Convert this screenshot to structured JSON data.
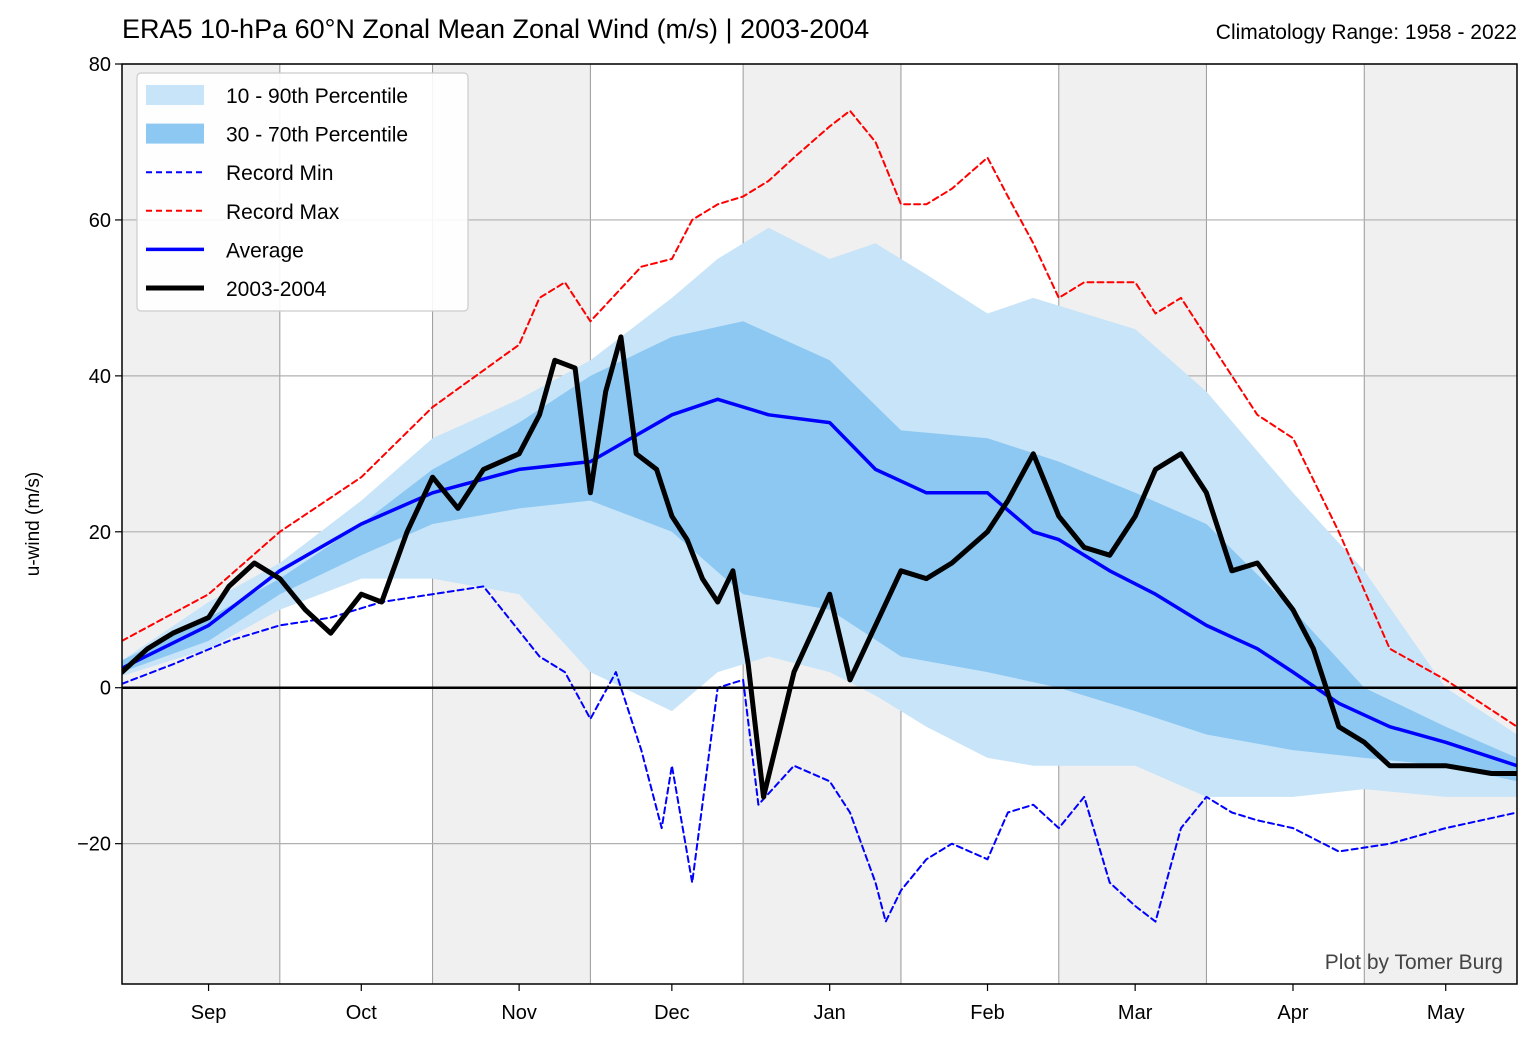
{
  "title": "ERA5 10-hPa 60°N Zonal Mean Zonal Wind (m/s) | 2003-2004",
  "subtitle": "Climatology Range: 1958 - 2022",
  "credit": "Plot by Tomer Burg",
  "chart_data": {
    "type": "line",
    "ylabel": "u-wind (m/s)",
    "xlabel": "",
    "x_domain": [
      "2003-08-15",
      "2004-05-15"
    ],
    "ylim": [
      -38,
      80
    ],
    "yticks": [
      -20,
      0,
      20,
      40,
      60,
      80
    ],
    "ytick_labels": [
      "−20",
      "0",
      "20",
      "40",
      "60",
      "80"
    ],
    "month_ticks": [
      {
        "label": "Sep",
        "date": "2003-09-01"
      },
      {
        "label": "Oct",
        "date": "2003-10-01"
      },
      {
        "label": "Nov",
        "date": "2003-11-01"
      },
      {
        "label": "Dec",
        "date": "2003-12-01"
      },
      {
        "label": "Jan",
        "date": "2004-01-01"
      },
      {
        "label": "Feb",
        "date": "2004-02-01"
      },
      {
        "label": "Mar",
        "date": "2004-03-01"
      },
      {
        "label": "Apr",
        "date": "2004-04-01"
      },
      {
        "label": "May",
        "date": "2004-05-01"
      }
    ],
    "month_boundaries": [
      "2003-09-15",
      "2003-10-15",
      "2003-11-15",
      "2003-12-15",
      "2004-01-15",
      "2004-02-15",
      "2004-03-15",
      "2004-04-15"
    ],
    "grid": true,
    "legend_position": "top-left",
    "legend": [
      "10 - 90th Percentile",
      "30 - 70th Percentile",
      "Record Min",
      "Record Max",
      "Average",
      "2003-2004"
    ],
    "colors": {
      "p10_90": "#c8e4f8",
      "p30_70": "#8cc8f2",
      "record_min": "#0000ff",
      "record_max": "#ff0000",
      "average": "#0000ff",
      "year": "#000000",
      "shade": "#f0f0f0"
    },
    "series": [
      {
        "name": "10 - 90th Percentile",
        "type": "band",
        "x": [
          "2003-08-15",
          "2003-09-01",
          "2003-09-15",
          "2003-10-01",
          "2003-10-15",
          "2003-11-01",
          "2003-11-15",
          "2003-12-01",
          "2003-12-10",
          "2003-12-20",
          "2004-01-01",
          "2004-01-10",
          "2004-01-20",
          "2004-02-01",
          "2004-02-10",
          "2004-02-20",
          "2004-03-01",
          "2004-03-15",
          "2004-04-01",
          "2004-04-15",
          "2004-05-01",
          "2004-05-15"
        ],
        "lower": [
          1.5,
          5,
          10,
          14,
          14,
          12,
          2,
          -3,
          2,
          4,
          2,
          -1,
          -5,
          -9,
          -10,
          -10,
          -10,
          -14,
          -14,
          -13,
          -14,
          -14
        ],
        "upper": [
          3.5,
          11,
          16,
          24,
          32,
          37,
          42,
          50,
          55,
          59,
          55,
          57,
          53,
          48,
          50,
          48,
          46,
          38,
          25,
          15,
          0,
          -6
        ]
      },
      {
        "name": "30 - 70th Percentile",
        "type": "band",
        "x": [
          "2003-08-15",
          "2003-09-01",
          "2003-09-15",
          "2003-10-01",
          "2003-10-15",
          "2003-11-01",
          "2003-11-15",
          "2003-12-01",
          "2003-12-15",
          "2004-01-01",
          "2004-01-15",
          "2004-02-01",
          "2004-02-15",
          "2004-03-01",
          "2004-03-15",
          "2004-04-01",
          "2004-04-15",
          "2004-05-01",
          "2004-05-15"
        ],
        "lower": [
          2,
          6,
          12,
          17,
          21,
          23,
          24,
          20,
          12,
          10,
          4,
          2,
          0,
          -3,
          -6,
          -8,
          -9,
          -10,
          -12
        ],
        "upper": [
          3.5,
          9,
          14,
          21,
          28,
          34,
          40,
          45,
          47,
          42,
          33,
          32,
          29,
          25,
          21,
          10,
          0,
          -5,
          -9
        ]
      },
      {
        "name": "Record Min",
        "type": "line",
        "x": [
          "2003-08-15",
          "2003-08-25",
          "2003-09-05",
          "2003-09-15",
          "2003-09-25",
          "2003-10-05",
          "2003-10-15",
          "2003-10-25",
          "2003-11-05",
          "2003-11-10",
          "2003-11-15",
          "2003-11-20",
          "2003-11-25",
          "2003-11-29",
          "2003-12-01",
          "2003-12-05",
          "2003-12-10",
          "2003-12-15",
          "2003-12-18",
          "2003-12-25",
          "2004-01-01",
          "2004-01-05",
          "2004-01-10",
          "2004-01-12",
          "2004-01-15",
          "2004-01-20",
          "2004-01-25",
          "2004-02-01",
          "2004-02-05",
          "2004-02-10",
          "2004-02-15",
          "2004-02-20",
          "2004-02-25",
          "2004-03-01",
          "2004-03-05",
          "2004-03-10",
          "2004-03-15",
          "2004-03-20",
          "2004-03-25",
          "2004-04-01",
          "2004-04-10",
          "2004-04-20",
          "2004-05-01",
          "2004-05-15"
        ],
        "values": [
          0.5,
          3,
          6,
          8,
          9,
          11,
          12,
          13,
          4,
          2,
          -4,
          2,
          -8,
          -18,
          -10,
          -25,
          0,
          1,
          -15,
          -10,
          -12,
          -16,
          -25,
          -30,
          -26,
          -22,
          -20,
          -22,
          -16,
          -15,
          -18,
          -14,
          -25,
          -28,
          -30,
          -18,
          -14,
          -16,
          -17,
          -18,
          -21,
          -20,
          -18,
          -16
        ]
      },
      {
        "name": "Record Max",
        "type": "line",
        "x": [
          "2003-08-15",
          "2003-09-01",
          "2003-09-15",
          "2003-10-01",
          "2003-10-15",
          "2003-11-01",
          "2003-11-05",
          "2003-11-10",
          "2003-11-15",
          "2003-11-25",
          "2003-12-01",
          "2003-12-05",
          "2003-12-10",
          "2003-12-15",
          "2003-12-20",
          "2003-12-25",
          "2004-01-01",
          "2004-01-05",
          "2004-01-10",
          "2004-01-15",
          "2004-01-20",
          "2004-01-25",
          "2004-02-01",
          "2004-02-05",
          "2004-02-10",
          "2004-02-15",
          "2004-02-20",
          "2004-02-25",
          "2004-03-01",
          "2004-03-05",
          "2004-03-10",
          "2004-03-15",
          "2004-03-20",
          "2004-03-25",
          "2004-04-01",
          "2004-04-10",
          "2004-04-20",
          "2004-05-01",
          "2004-05-15"
        ],
        "values": [
          6,
          12,
          20,
          27,
          36,
          44,
          50,
          52,
          47,
          54,
          55,
          60,
          62,
          63,
          65,
          68,
          72,
          74,
          70,
          62,
          62,
          64,
          68,
          63,
          57,
          50,
          52,
          52,
          52,
          48,
          50,
          45,
          40,
          35,
          32,
          20,
          5,
          1,
          -5
        ]
      },
      {
        "name": "Average",
        "type": "line",
        "x": [
          "2003-08-15",
          "2003-09-01",
          "2003-09-15",
          "2003-10-01",
          "2003-10-15",
          "2003-11-01",
          "2003-11-15",
          "2003-12-01",
          "2003-12-10",
          "2003-12-20",
          "2004-01-01",
          "2004-01-10",
          "2004-01-20",
          "2004-02-01",
          "2004-02-10",
          "2004-02-15",
          "2004-02-25",
          "2004-03-05",
          "2004-03-15",
          "2004-03-25",
          "2004-04-01",
          "2004-04-10",
          "2004-04-20",
          "2004-05-01",
          "2004-05-15"
        ],
        "values": [
          2.5,
          8,
          15,
          21,
          25,
          28,
          29,
          35,
          37,
          35,
          34,
          28,
          25,
          25,
          20,
          19,
          15,
          12,
          8,
          5,
          2,
          -2,
          -5,
          -7,
          -10
        ]
      },
      {
        "name": "2003-2004",
        "type": "line",
        "x": [
          "2003-08-15",
          "2003-08-20",
          "2003-08-25",
          "2003-09-01",
          "2003-09-05",
          "2003-09-10",
          "2003-09-15",
          "2003-09-20",
          "2003-09-25",
          "2003-10-01",
          "2003-10-05",
          "2003-10-10",
          "2003-10-15",
          "2003-10-20",
          "2003-10-25",
          "2003-11-01",
          "2003-11-05",
          "2003-11-08",
          "2003-11-12",
          "2003-11-15",
          "2003-11-18",
          "2003-11-21",
          "2003-11-24",
          "2003-11-28",
          "2003-12-01",
          "2003-12-04",
          "2003-12-07",
          "2003-12-10",
          "2003-12-13",
          "2003-12-16",
          "2003-12-19",
          "2003-12-22",
          "2003-12-25",
          "2004-01-01",
          "2004-01-05",
          "2004-01-10",
          "2004-01-15",
          "2004-01-20",
          "2004-01-25",
          "2004-02-01",
          "2004-02-05",
          "2004-02-10",
          "2004-02-15",
          "2004-02-20",
          "2004-02-25",
          "2004-03-01",
          "2004-03-05",
          "2004-03-10",
          "2004-03-15",
          "2004-03-20",
          "2004-03-25",
          "2004-04-01",
          "2004-04-05",
          "2004-04-10",
          "2004-04-15",
          "2004-04-20",
          "2004-05-01",
          "2004-05-10",
          "2004-05-15"
        ],
        "values": [
          2,
          5,
          7,
          9,
          13,
          16,
          14,
          10,
          7,
          12,
          11,
          20,
          27,
          23,
          28,
          30,
          35,
          42,
          41,
          25,
          38,
          45,
          30,
          28,
          22,
          19,
          14,
          11,
          15,
          3,
          -14,
          -6,
          2,
          12,
          1,
          8,
          15,
          14,
          16,
          20,
          24,
          30,
          22,
          18,
          17,
          22,
          28,
          30,
          25,
          15,
          16,
          10,
          5,
          -5,
          -7,
          -10,
          -10,
          -11,
          -11
        ]
      }
    ]
  }
}
